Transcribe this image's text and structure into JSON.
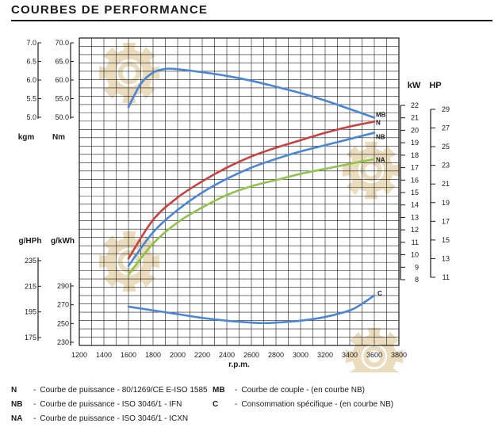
{
  "page_title": "COURBES DE PERFORMANCE",
  "colors": {
    "N": "#c94141",
    "NB": "#4a86d8",
    "NA": "#8fc34b",
    "MB": "#4a86d8",
    "C": "#4a86d8",
    "grid": "#1a1a1a",
    "watermark": "#e6d6b0"
  },
  "watermark": {
    "icon": "gear-logo-watermark"
  },
  "chart_data": {
    "type": "line",
    "title": "COURBES DE PERFORMANCE",
    "xlabel": "r.p.m.",
    "x_ticks": [
      1200,
      1400,
      1600,
      1800,
      2000,
      2200,
      2400,
      2600,
      2800,
      3000,
      3200,
      3400,
      3600,
      3800
    ],
    "xlim": [
      1200,
      3800
    ],
    "grid": true,
    "axes": {
      "torque_kgm": {
        "unit": "kgm",
        "ticks": [
          "7.0",
          "6.5",
          "6.0",
          "5.5",
          "5.0"
        ],
        "range": [
          5.0,
          7.0
        ]
      },
      "torque_nm": {
        "unit": "Nm",
        "ticks": [
          "70.0",
          "65.0",
          "60.0",
          "55.0",
          "50.0"
        ],
        "range": [
          50,
          70
        ]
      },
      "power_kw": {
        "unit": "kW",
        "ticks": [
          "22",
          "21",
          "20",
          "19",
          "18",
          "17",
          "16",
          "15",
          "14",
          "13",
          "12",
          "11",
          "10",
          "9",
          "8"
        ],
        "range": [
          8,
          22
        ]
      },
      "power_hp": {
        "unit": "HP",
        "ticks": [
          "29",
          "27",
          "25",
          "23",
          "21",
          "19",
          "17",
          "15",
          "13",
          "11"
        ],
        "range": [
          11,
          29
        ]
      },
      "cons_ghph": {
        "unit": "g/HPh",
        "ticks": [
          "235",
          "215",
          "195",
          "175"
        ],
        "range": [
          175,
          235
        ]
      },
      "cons_gkwh": {
        "unit": "g/kWh",
        "ticks": [
          "290",
          "270",
          "250",
          "230"
        ],
        "range": [
          230,
          290
        ]
      }
    },
    "series": [
      {
        "name": "MB",
        "code": "MB",
        "axis": "torque_nm",
        "points": [
          [
            1600,
            52.7
          ],
          [
            1700,
            59.0
          ],
          [
            1800,
            62.0
          ],
          [
            1900,
            63.0
          ],
          [
            2000,
            62.9
          ],
          [
            2200,
            62.1
          ],
          [
            2400,
            61.1
          ],
          [
            2600,
            59.8
          ],
          [
            2800,
            58.2
          ],
          [
            3000,
            56.5
          ],
          [
            3200,
            54.5
          ],
          [
            3400,
            52.2
          ],
          [
            3600,
            49.9
          ]
        ]
      },
      {
        "name": "N",
        "code": "N",
        "axis": "power_kw",
        "points": [
          [
            1600,
            9.7
          ],
          [
            1800,
            12.8
          ],
          [
            2000,
            14.6
          ],
          [
            2200,
            15.9
          ],
          [
            2400,
            17.0
          ],
          [
            2600,
            17.9
          ],
          [
            2800,
            18.6
          ],
          [
            3000,
            19.2
          ],
          [
            3200,
            19.8
          ],
          [
            3400,
            20.3
          ],
          [
            3600,
            20.7
          ]
        ]
      },
      {
        "name": "NB",
        "code": "NB",
        "axis": "power_kw",
        "points": [
          [
            1600,
            9.1
          ],
          [
            1800,
            11.8
          ],
          [
            2000,
            13.6
          ],
          [
            2200,
            15.0
          ],
          [
            2400,
            16.1
          ],
          [
            2600,
            17.0
          ],
          [
            2800,
            17.7
          ],
          [
            3000,
            18.3
          ],
          [
            3200,
            18.8
          ],
          [
            3400,
            19.3
          ],
          [
            3600,
            19.8
          ]
        ]
      },
      {
        "name": "NA",
        "code": "NA",
        "axis": "power_kw",
        "points": [
          [
            1600,
            8.4
          ],
          [
            1800,
            10.9
          ],
          [
            2000,
            12.6
          ],
          [
            2200,
            13.8
          ],
          [
            2400,
            14.8
          ],
          [
            2600,
            15.5
          ],
          [
            2800,
            16.0
          ],
          [
            3000,
            16.5
          ],
          [
            3200,
            16.9
          ],
          [
            3400,
            17.3
          ],
          [
            3600,
            17.7
          ]
        ]
      },
      {
        "name": "C",
        "code": "C",
        "axis": "cons_gkwh",
        "points": [
          [
            1600,
            268
          ],
          [
            1800,
            264
          ],
          [
            2000,
            260
          ],
          [
            2200,
            256
          ],
          [
            2400,
            253
          ],
          [
            2600,
            251
          ],
          [
            2700,
            250.5
          ],
          [
            2800,
            251
          ],
          [
            3000,
            253
          ],
          [
            3200,
            257
          ],
          [
            3400,
            264
          ],
          [
            3500,
            271
          ],
          [
            3600,
            280
          ]
        ]
      }
    ]
  },
  "legend": [
    {
      "code": "N",
      "text": "Courbe de puissance - 80/1269/CE E-ISO 1585"
    },
    {
      "code": "NB",
      "text": "Courbe de puissance - ISO 3046/1 - IFN"
    },
    {
      "code": "NA",
      "text": "Courbe de puissance - ISO 3046/1 - ICXN"
    },
    {
      "code": "MB",
      "text": "Courbe de couple - (en courbe NB)"
    },
    {
      "code": "C",
      "text": "Consommation spécifique - (en courbe NB)"
    }
  ]
}
